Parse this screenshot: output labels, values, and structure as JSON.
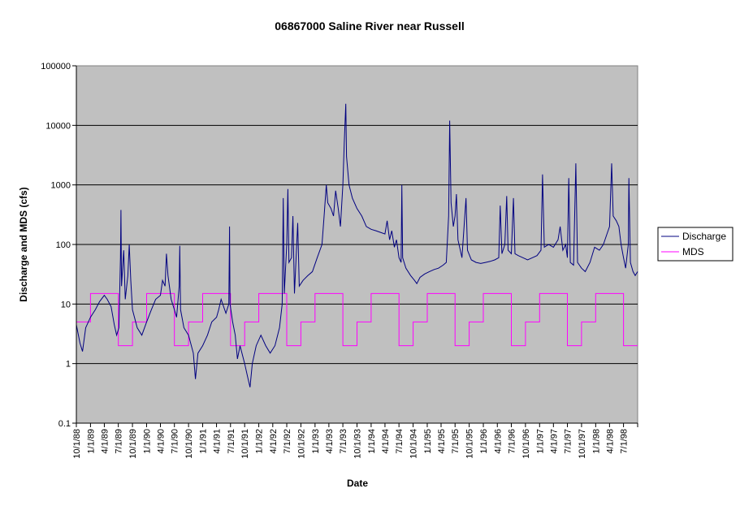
{
  "chart_data": {
    "type": "line",
    "title": "06867000 Saline River near Russell",
    "xlabel": "Date",
    "ylabel": "Discharge and MDS (cfs)",
    "y_scale": "log",
    "ylim": [
      0.1,
      100000
    ],
    "y_ticks": [
      "0.1",
      "1",
      "10",
      "100",
      "1000",
      "10000",
      "100000"
    ],
    "xlim": [
      "10/1/88",
      "10/1/98"
    ],
    "x_ticks": [
      "10/1/88",
      "1/1/89",
      "4/1/89",
      "7/1/89",
      "10/1/89",
      "1/1/90",
      "4/1/90",
      "7/1/90",
      "10/1/90",
      "1/1/91",
      "4/1/91",
      "7/1/91",
      "10/1/91",
      "1/1/92",
      "4/1/92",
      "7/1/92",
      "10/1/92",
      "1/1/93",
      "4/1/93",
      "7/1/93",
      "10/1/93",
      "1/1/94",
      "4/1/94",
      "7/1/94",
      "10/1/94",
      "1/1/95",
      "4/1/95",
      "7/1/95",
      "10/1/95",
      "1/1/96",
      "4/1/96",
      "7/1/96",
      "10/1/96",
      "1/1/97",
      "4/1/97",
      "7/1/97",
      "10/1/97",
      "1/1/98",
      "4/1/98",
      "7/1/98"
    ],
    "grid": "horizontal major",
    "plot_background": "#c0c0c0",
    "legend_position": "right",
    "series": [
      {
        "name": "Discharge",
        "color": "#000080",
        "points": [
          [
            "10/1/88",
            4.5
          ],
          [
            "10/25/88",
            2.2
          ],
          [
            "11/10/88",
            1.6
          ],
          [
            "12/1/88",
            4
          ],
          [
            "1/1/89",
            6
          ],
          [
            "2/1/89",
            8
          ],
          [
            "3/1/89",
            11
          ],
          [
            "4/1/89",
            14
          ],
          [
            "4/20/89",
            12
          ],
          [
            "5/15/89",
            9
          ],
          [
            "6/5/89",
            4.5
          ],
          [
            "6/20/89",
            3
          ],
          [
            "7/5/89",
            4
          ],
          [
            "7/15/89",
            60
          ],
          [
            "7/18/89",
            380
          ],
          [
            "7/22/89",
            20
          ],
          [
            "8/5/89",
            80
          ],
          [
            "8/15/89",
            12
          ],
          [
            "9/1/89",
            30
          ],
          [
            "9/10/89",
            100
          ],
          [
            "9/20/89",
            25
          ],
          [
            "10/1/89",
            8
          ],
          [
            "11/1/89",
            4
          ],
          [
            "12/1/89",
            3
          ],
          [
            "1/1/90",
            5
          ],
          [
            "2/1/90",
            8
          ],
          [
            "3/1/90",
            12
          ],
          [
            "4/1/90",
            14
          ],
          [
            "4/15/90",
            25
          ],
          [
            "5/1/90",
            20
          ],
          [
            "5/10/90",
            70
          ],
          [
            "5/20/90",
            30
          ],
          [
            "6/10/90",
            12
          ],
          [
            "7/1/90",
            8
          ],
          [
            "7/15/90",
            6
          ],
          [
            "8/1/90",
            20
          ],
          [
            "8/5/90",
            95
          ],
          [
            "8/10/90",
            8
          ],
          [
            "9/1/90",
            4
          ],
          [
            "10/1/90",
            3
          ],
          [
            "11/1/90",
            1.5
          ],
          [
            "11/15/90",
            0.55
          ],
          [
            "12/1/90",
            1.5
          ],
          [
            "1/1/91",
            2
          ],
          [
            "2/1/91",
            3
          ],
          [
            "3/1/91",
            5
          ],
          [
            "4/1/91",
            6
          ],
          [
            "4/15/91",
            8
          ],
          [
            "5/1/91",
            12
          ],
          [
            "6/1/91",
            7
          ],
          [
            "6/20/91",
            10
          ],
          [
            "6/25/91",
            200
          ],
          [
            "6/28/91",
            10
          ],
          [
            "7/15/91",
            5
          ],
          [
            "8/1/91",
            3
          ],
          [
            "8/15/91",
            1.2
          ],
          [
            "9/1/91",
            2
          ],
          [
            "10/1/91",
            1
          ],
          [
            "10/20/91",
            0.6
          ],
          [
            "11/5/91",
            0.4
          ],
          [
            "11/20/91",
            1
          ],
          [
            "12/15/91",
            2
          ],
          [
            "1/15/92",
            3
          ],
          [
            "2/15/92",
            2
          ],
          [
            "3/15/92",
            1.5
          ],
          [
            "4/15/92",
            2
          ],
          [
            "5/15/92",
            4
          ],
          [
            "6/1/92",
            10
          ],
          [
            "6/8/92",
            600
          ],
          [
            "6/15/92",
            15
          ],
          [
            "7/1/92",
            100
          ],
          [
            "7/8/92",
            850
          ],
          [
            "7/15/92",
            50
          ],
          [
            "8/1/92",
            60
          ],
          [
            "8/10/92",
            300
          ],
          [
            "8/20/92",
            15
          ],
          [
            "9/10/92",
            230
          ],
          [
            "9/20/92",
            20
          ],
          [
            "10/15/92",
            25
          ],
          [
            "11/15/92",
            30
          ],
          [
            "12/15/92",
            35
          ],
          [
            "1/15/93",
            60
          ],
          [
            "2/15/93",
            100
          ],
          [
            "3/1/93",
            300
          ],
          [
            "3/15/93",
            1000
          ],
          [
            "3/25/93",
            500
          ],
          [
            "4/15/93",
            400
          ],
          [
            "5/1/93",
            300
          ],
          [
            "5/15/93",
            800
          ],
          [
            "6/1/93",
            400
          ],
          [
            "6/15/93",
            200
          ],
          [
            "7/1/93",
            1000
          ],
          [
            "7/10/93",
            5000
          ],
          [
            "7/20/93",
            23000
          ],
          [
            "7/25/93",
            3000
          ],
          [
            "8/10/93",
            1000
          ],
          [
            "9/1/93",
            600
          ],
          [
            "10/1/93",
            400
          ],
          [
            "11/1/93",
            300
          ],
          [
            "12/1/93",
            200
          ],
          [
            "1/1/94",
            180
          ],
          [
            "2/1/94",
            170
          ],
          [
            "3/1/94",
            160
          ],
          [
            "4/1/94",
            150
          ],
          [
            "4/15/94",
            250
          ],
          [
            "5/1/94",
            120
          ],
          [
            "5/15/94",
            170
          ],
          [
            "6/1/94",
            90
          ],
          [
            "6/15/94",
            120
          ],
          [
            "7/1/94",
            60
          ],
          [
            "7/15/94",
            50
          ],
          [
            "7/20/94",
            1000
          ],
          [
            "7/25/94",
            60
          ],
          [
            "8/15/94",
            40
          ],
          [
            "9/15/94",
            30
          ],
          [
            "10/10/94",
            25
          ],
          [
            "10/25/94",
            22
          ],
          [
            "11/15/94",
            28
          ],
          [
            "12/15/94",
            32
          ],
          [
            "1/15/95",
            35
          ],
          [
            "2/15/95",
            38
          ],
          [
            "3/15/95",
            40
          ],
          [
            "4/15/95",
            45
          ],
          [
            "5/5/95",
            50
          ],
          [
            "5/20/95",
            300
          ],
          [
            "5/27/95",
            12000
          ],
          [
            "6/5/95",
            500
          ],
          [
            "6/20/95",
            200
          ],
          [
            "7/1/95",
            300
          ],
          [
            "7/10/95",
            700
          ],
          [
            "7/20/95",
            120
          ],
          [
            "8/15/95",
            60
          ],
          [
            "9/10/95",
            600
          ],
          [
            "9/20/95",
            80
          ],
          [
            "10/15/95",
            55
          ],
          [
            "11/15/95",
            50
          ],
          [
            "12/15/95",
            48
          ],
          [
            "1/15/96",
            50
          ],
          [
            "2/15/96",
            52
          ],
          [
            "3/15/96",
            55
          ],
          [
            "4/10/96",
            60
          ],
          [
            "4/20/96",
            450
          ],
          [
            "5/1/96",
            70
          ],
          [
            "5/20/96",
            100
          ],
          [
            "6/1/96",
            650
          ],
          [
            "6/10/96",
            80
          ],
          [
            "7/1/96",
            70
          ],
          [
            "7/15/96",
            600
          ],
          [
            "7/25/96",
            70
          ],
          [
            "8/15/96",
            65
          ],
          [
            "9/15/96",
            60
          ],
          [
            "10/15/96",
            55
          ],
          [
            "11/15/96",
            60
          ],
          [
            "12/15/96",
            65
          ],
          [
            "1/10/97",
            80
          ],
          [
            "1/20/97",
            1500
          ],
          [
            "2/1/97",
            90
          ],
          [
            "3/1/97",
            100
          ],
          [
            "4/1/97",
            90
          ],
          [
            "5/1/97",
            120
          ],
          [
            "5/15/97",
            200
          ],
          [
            "6/1/97",
            80
          ],
          [
            "6/20/97",
            100
          ],
          [
            "7/1/97",
            60
          ],
          [
            "7/10/97",
            1300
          ],
          [
            "7/20/97",
            50
          ],
          [
            "8/10/97",
            45
          ],
          [
            "8/25/97",
            2300
          ],
          [
            "9/5/97",
            50
          ],
          [
            "10/1/97",
            40
          ],
          [
            "10/25/97",
            35
          ],
          [
            "11/25/97",
            50
          ],
          [
            "12/25/97",
            90
          ],
          [
            "1/25/98",
            80
          ],
          [
            "2/20/98",
            100
          ],
          [
            "3/15/98",
            150
          ],
          [
            "4/1/98",
            200
          ],
          [
            "4/15/98",
            2300
          ],
          [
            "4/25/98",
            300
          ],
          [
            "5/15/98",
            250
          ],
          [
            "6/1/98",
            200
          ],
          [
            "6/15/98",
            100
          ],
          [
            "7/1/98",
            60
          ],
          [
            "7/15/98",
            40
          ],
          [
            "8/1/98",
            100
          ],
          [
            "8/5/98",
            1300
          ],
          [
            "8/15/98",
            50
          ],
          [
            "9/1/98",
            35
          ],
          [
            "9/15/98",
            30
          ],
          [
            "10/1/98",
            35
          ]
        ]
      },
      {
        "name": "MDS",
        "color": "#ff00ff",
        "points": [
          [
            "10/1/88",
            5
          ],
          [
            "1/1/89",
            5
          ],
          [
            "1/1/89",
            15
          ],
          [
            "7/1/89",
            15
          ],
          [
            "7/1/89",
            2
          ],
          [
            "10/1/89",
            2
          ],
          [
            "10/1/89",
            5
          ],
          [
            "1/1/90",
            5
          ],
          [
            "1/1/90",
            15
          ],
          [
            "7/1/90",
            15
          ],
          [
            "7/1/90",
            2
          ],
          [
            "10/1/90",
            2
          ],
          [
            "10/1/90",
            5
          ],
          [
            "1/1/91",
            5
          ],
          [
            "1/1/91",
            15
          ],
          [
            "7/1/91",
            15
          ],
          [
            "7/1/91",
            2
          ],
          [
            "10/1/91",
            2
          ],
          [
            "10/1/91",
            5
          ],
          [
            "1/1/92",
            5
          ],
          [
            "1/1/92",
            15
          ],
          [
            "7/1/92",
            15
          ],
          [
            "7/1/92",
            2
          ],
          [
            "10/1/92",
            2
          ],
          [
            "10/1/92",
            5
          ],
          [
            "1/1/93",
            5
          ],
          [
            "1/1/93",
            15
          ],
          [
            "7/1/93",
            15
          ],
          [
            "7/1/93",
            2
          ],
          [
            "10/1/93",
            2
          ],
          [
            "10/1/93",
            5
          ],
          [
            "1/1/94",
            5
          ],
          [
            "1/1/94",
            15
          ],
          [
            "7/1/94",
            15
          ],
          [
            "7/1/94",
            2
          ],
          [
            "10/1/94",
            2
          ],
          [
            "10/1/94",
            5
          ],
          [
            "1/1/95",
            5
          ],
          [
            "1/1/95",
            15
          ],
          [
            "7/1/95",
            15
          ],
          [
            "7/1/95",
            2
          ],
          [
            "10/1/95",
            2
          ],
          [
            "10/1/95",
            5
          ],
          [
            "1/1/96",
            5
          ],
          [
            "1/1/96",
            15
          ],
          [
            "7/1/96",
            15
          ],
          [
            "7/1/96",
            2
          ],
          [
            "10/1/96",
            2
          ],
          [
            "10/1/96",
            5
          ],
          [
            "1/1/97",
            5
          ],
          [
            "1/1/97",
            15
          ],
          [
            "7/1/97",
            15
          ],
          [
            "7/1/97",
            2
          ],
          [
            "10/1/97",
            2
          ],
          [
            "10/1/97",
            5
          ],
          [
            "1/1/98",
            5
          ],
          [
            "1/1/98",
            15
          ],
          [
            "7/1/98",
            15
          ],
          [
            "7/1/98",
            2
          ],
          [
            "10/1/98",
            2
          ]
        ]
      }
    ]
  }
}
